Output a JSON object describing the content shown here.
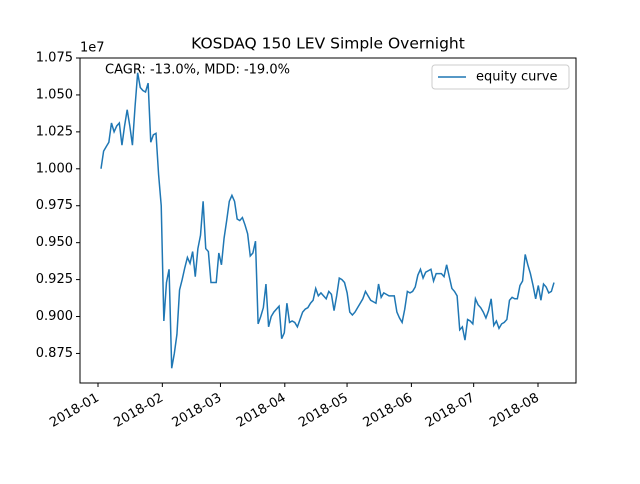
{
  "chart_data": {
    "type": "line",
    "title": "KOSDAQ 150 LEV Simple Overnight",
    "annotation": "CAGR: -13.0%, MDD: -19.0%",
    "y_offset_label": "1e7",
    "series": [
      {
        "name": "equity curve",
        "color": "#1f77b4",
        "values": [
          1.0,
          1.012,
          1.015,
          1.018,
          1.031,
          1.025,
          1.029,
          1.031,
          1.016,
          1.029,
          1.04,
          1.029,
          1.016,
          1.042,
          1.065,
          1.055,
          1.053,
          1.052,
          1.058,
          1.018,
          1.023,
          1.024,
          0.996,
          0.975,
          0.897,
          0.923,
          0.932,
          0.865,
          0.875,
          0.888,
          0.918,
          0.925,
          0.933,
          0.94,
          0.936,
          0.944,
          0.927,
          0.946,
          0.955,
          0.978,
          0.946,
          0.944,
          0.923,
          0.923,
          0.923,
          0.943,
          0.935,
          0.953,
          0.965,
          0.978,
          0.982,
          0.978,
          0.966,
          0.965,
          0.967,
          0.962,
          0.956,
          0.941,
          0.943,
          0.951,
          0.895,
          0.9,
          0.906,
          0.922,
          0.893,
          0.9,
          0.903,
          0.905,
          0.907,
          0.885,
          0.889,
          0.909,
          0.896,
          0.897,
          0.896,
          0.893,
          0.898,
          0.903,
          0.905,
          0.906,
          0.909,
          0.911,
          0.919,
          0.914,
          0.916,
          0.914,
          0.912,
          0.917,
          0.915,
          0.904,
          0.914,
          0.926,
          0.925,
          0.923,
          0.916,
          0.903,
          0.901,
          0.903,
          0.906,
          0.909,
          0.912,
          0.917,
          0.914,
          0.911,
          0.91,
          0.909,
          0.922,
          0.913,
          0.916,
          0.915,
          0.914,
          0.914,
          0.914,
          0.903,
          0.899,
          0.896,
          0.905,
          0.917,
          0.916,
          0.917,
          0.92,
          0.928,
          0.932,
          0.926,
          0.93,
          0.931,
          0.932,
          0.924,
          0.929,
          0.929,
          0.929,
          0.927,
          0.935,
          0.927,
          0.919,
          0.917,
          0.914,
          0.891,
          0.893,
          0.884,
          0.898,
          0.897,
          0.895,
          0.912,
          0.908,
          0.906,
          0.903,
          0.899,
          0.904,
          0.912,
          0.894,
          0.897,
          0.892,
          0.895,
          0.896,
          0.898,
          0.911,
          0.913,
          0.912,
          0.912,
          0.921,
          0.924,
          0.942,
          0.935,
          0.929,
          0.921,
          0.912,
          0.921,
          0.911,
          0.922,
          0.92,
          0.916,
          0.917,
          0.923
        ]
      }
    ],
    "xticks": [
      "2018-01",
      "2018-02",
      "2018-03",
      "2018-04",
      "2018-05",
      "2018-06",
      "2018-07",
      "2018-08"
    ],
    "ylim": [
      0.855,
      1.075
    ],
    "yticks": [
      0.875,
      {
        "value": 0.9,
        "label": "0.900"
      },
      0.925,
      {
        "value": 0.95,
        "label": "0.950"
      },
      0.975,
      {
        "value": 1.0,
        "label": "1.000"
      },
      1.025,
      {
        "value": 1.05,
        "label": "1.050"
      },
      1.075
    ],
    "legend": "upper right"
  }
}
